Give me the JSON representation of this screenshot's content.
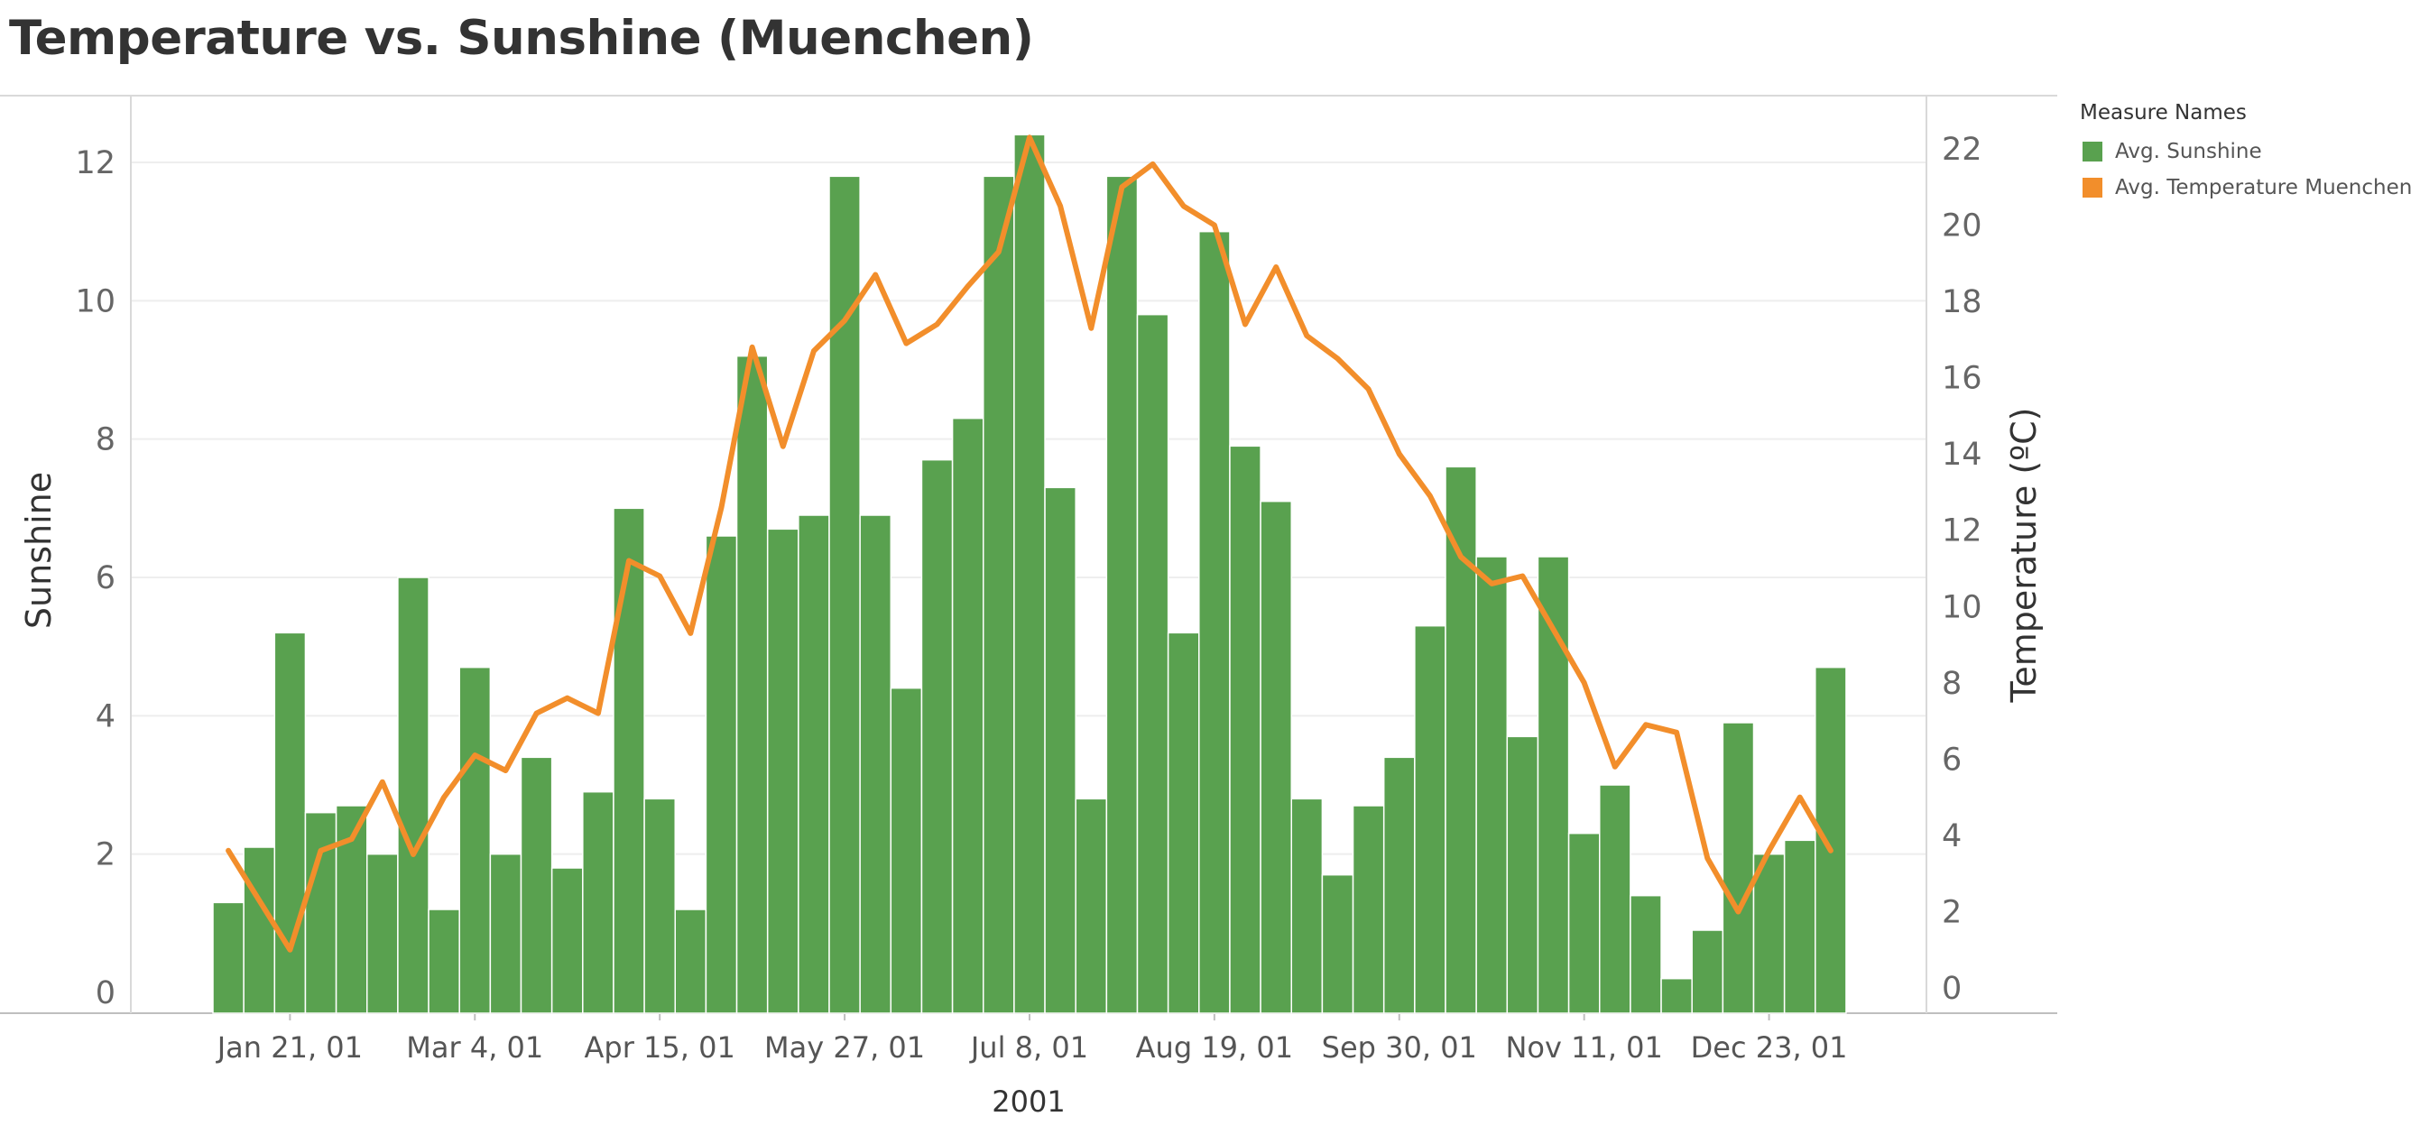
{
  "chart_data": {
    "type": "bar+line",
    "title": "Temperature vs. Sunshine (Muenchen)",
    "xlabel": "2001",
    "ylabel_left": "Sunshine",
    "ylabel_right": "Temperature (ºC)",
    "x_tick_labels": [
      "Jan 21, 01",
      "Mar 4, 01",
      "Apr 15, 01",
      "May 27, 01",
      "Jul 8, 01",
      "Aug 19, 01",
      "Sep 30, 01",
      "Nov 11, 01",
      "Dec 23, 01"
    ],
    "y_left_ticks": [
      0,
      2,
      4,
      6,
      8,
      10,
      12
    ],
    "y_right_ticks": [
      0,
      2,
      4,
      6,
      8,
      10,
      12,
      14,
      16,
      18,
      20,
      22
    ],
    "ylim_left": [
      0,
      13
    ],
    "ylim_right": [
      0,
      23
    ],
    "grid": true,
    "legend": {
      "title": "Measure Names",
      "position": "top-right",
      "entries": [
        {
          "label": "Avg. Sunshine",
          "color": "#59a14f"
        },
        {
          "label": "Avg. Temperature Muenchen",
          "color": "#f28e2b"
        }
      ]
    },
    "series": [
      {
        "name": "Avg. Sunshine",
        "type": "bar",
        "axis": "left",
        "color": "#59a14f",
        "values": [
          1.3,
          2.1,
          5.2,
          2.6,
          2.7,
          2.0,
          6.0,
          1.2,
          4.7,
          2.0,
          3.4,
          1.8,
          2.9,
          7.0,
          2.8,
          1.2,
          6.6,
          9.2,
          6.7,
          6.9,
          11.8,
          6.9,
          4.4,
          7.7,
          8.3,
          11.8,
          12.4,
          7.3,
          2.8,
          11.8,
          9.8,
          5.2,
          11.0,
          7.9,
          7.1,
          2.8,
          1.7,
          2.7,
          3.4,
          5.3,
          7.6,
          6.3,
          3.7,
          6.3,
          2.3,
          3.0,
          1.4,
          0.2,
          0.9,
          3.9,
          2.0,
          2.2,
          4.7
        ]
      },
      {
        "name": "Avg. Temperature Muenchen",
        "type": "line",
        "axis": "right",
        "color": "#f28e2b",
        "values": [
          3.6,
          2.3,
          1.0,
          3.6,
          3.9,
          5.4,
          3.5,
          5.0,
          6.1,
          5.7,
          7.2,
          7.6,
          7.2,
          11.2,
          10.8,
          9.3,
          12.6,
          16.8,
          14.2,
          16.7,
          17.5,
          18.7,
          16.9,
          17.4,
          18.4,
          19.3,
          22.3,
          20.5,
          17.3,
          21.0,
          21.6,
          20.5,
          20.0,
          17.4,
          18.9,
          17.1,
          16.5,
          15.7,
          14.0,
          12.9,
          11.3,
          10.6,
          10.8,
          9.4,
          8.0,
          5.8,
          6.9,
          6.7,
          3.4,
          2.0,
          3.6,
          5.0,
          3.6
        ]
      }
    ]
  }
}
